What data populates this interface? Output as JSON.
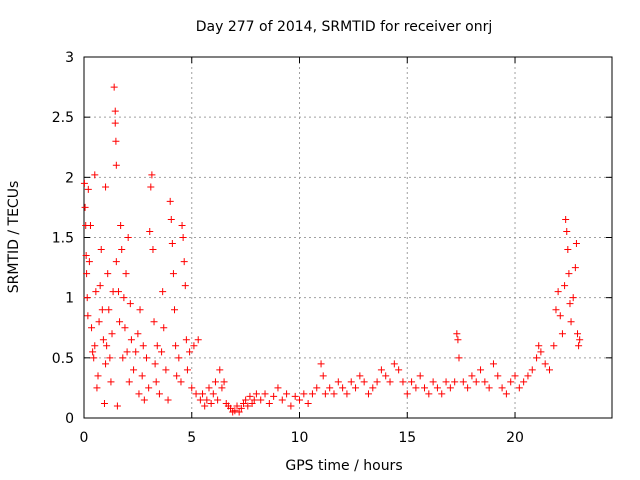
{
  "chart_data": {
    "type": "scatter",
    "title": "Day 277 of 2014, SRMTID for receiver onrj",
    "xlabel": "GPS time / hours",
    "ylabel": "SRMTID / TECUs",
    "xlim": [
      0,
      24.5
    ],
    "ylim": [
      0,
      3
    ],
    "xticks": [
      0,
      5,
      10,
      15,
      20
    ],
    "xtick_labels": [
      "0",
      "5",
      "10",
      "15",
      "20"
    ],
    "yticks": [
      0,
      0.5,
      1,
      1.5,
      2,
      2.5,
      3
    ],
    "ytick_labels": [
      "0",
      "0.5",
      "1",
      "1.5",
      "2",
      "2.5",
      "3"
    ],
    "grid": true,
    "marker": "+",
    "color": "#ff0000",
    "series": [
      {
        "name": "SRMTID",
        "points": [
          [
            0.02,
            1.95
          ],
          [
            0.05,
            1.75
          ],
          [
            0.08,
            1.6
          ],
          [
            0.1,
            1.35
          ],
          [
            0.12,
            1.2
          ],
          [
            0.15,
            1.0
          ],
          [
            0.18,
            0.85
          ],
          [
            0.2,
            1.9
          ],
          [
            0.25,
            1.3
          ],
          [
            0.3,
            1.6
          ],
          [
            0.35,
            0.75
          ],
          [
            0.4,
            0.55
          ],
          [
            0.45,
            0.5
          ],
          [
            0.5,
            2.02
          ],
          [
            0.5,
            0.6
          ],
          [
            0.55,
            1.05
          ],
          [
            0.6,
            0.25
          ],
          [
            0.65,
            0.35
          ],
          [
            0.7,
            0.8
          ],
          [
            0.75,
            1.1
          ],
          [
            0.8,
            1.4
          ],
          [
            0.85,
            0.9
          ],
          [
            0.9,
            0.65
          ],
          [
            0.95,
            0.12
          ],
          [
            1.0,
            1.92
          ],
          [
            1.0,
            0.45
          ],
          [
            1.05,
            0.6
          ],
          [
            1.1,
            1.2
          ],
          [
            1.15,
            0.9
          ],
          [
            1.2,
            0.5
          ],
          [
            1.25,
            0.3
          ],
          [
            1.3,
            0.7
          ],
          [
            1.35,
            1.05
          ],
          [
            1.4,
            2.75
          ],
          [
            1.45,
            2.55
          ],
          [
            1.45,
            2.45
          ],
          [
            1.48,
            2.3
          ],
          [
            1.5,
            2.1
          ],
          [
            1.5,
            1.3
          ],
          [
            1.55,
            0.1
          ],
          [
            1.6,
            1.05
          ],
          [
            1.65,
            0.8
          ],
          [
            1.7,
            1.6
          ],
          [
            1.75,
            1.4
          ],
          [
            1.8,
            0.5
          ],
          [
            1.85,
            1.0
          ],
          [
            1.9,
            0.75
          ],
          [
            1.95,
            1.2
          ],
          [
            2.0,
            0.55
          ],
          [
            2.05,
            1.5
          ],
          [
            2.1,
            0.3
          ],
          [
            2.15,
            0.95
          ],
          [
            2.2,
            0.65
          ],
          [
            2.3,
            0.4
          ],
          [
            2.4,
            0.55
          ],
          [
            2.5,
            0.7
          ],
          [
            2.55,
            0.2
          ],
          [
            2.6,
            0.9
          ],
          [
            2.7,
            0.35
          ],
          [
            2.75,
            0.6
          ],
          [
            2.8,
            0.15
          ],
          [
            2.9,
            0.5
          ],
          [
            3.0,
            0.25
          ],
          [
            3.05,
            1.55
          ],
          [
            3.1,
            1.92
          ],
          [
            3.15,
            2.02
          ],
          [
            3.2,
            1.4
          ],
          [
            3.25,
            0.8
          ],
          [
            3.3,
            0.45
          ],
          [
            3.35,
            0.3
          ],
          [
            3.4,
            0.6
          ],
          [
            3.5,
            0.2
          ],
          [
            3.6,
            0.55
          ],
          [
            3.65,
            1.05
          ],
          [
            3.7,
            0.75
          ],
          [
            3.8,
            0.4
          ],
          [
            3.9,
            0.15
          ],
          [
            4.0,
            1.8
          ],
          [
            4.05,
            1.65
          ],
          [
            4.1,
            1.45
          ],
          [
            4.15,
            1.2
          ],
          [
            4.2,
            0.9
          ],
          [
            4.25,
            0.6
          ],
          [
            4.3,
            0.35
          ],
          [
            4.4,
            0.5
          ],
          [
            4.5,
            0.3
          ],
          [
            4.55,
            1.6
          ],
          [
            4.6,
            1.5
          ],
          [
            4.65,
            1.3
          ],
          [
            4.7,
            1.1
          ],
          [
            4.75,
            0.65
          ],
          [
            4.8,
            0.4
          ],
          [
            4.9,
            0.55
          ],
          [
            5.0,
            0.25
          ],
          [
            5.1,
            0.6
          ],
          [
            5.2,
            0.2
          ],
          [
            5.3,
            0.65
          ],
          [
            5.4,
            0.15
          ],
          [
            5.5,
            0.2
          ],
          [
            5.6,
            0.1
          ],
          [
            5.7,
            0.15
          ],
          [
            5.8,
            0.25
          ],
          [
            5.9,
            0.12
          ],
          [
            6.0,
            0.2
          ],
          [
            6.1,
            0.3
          ],
          [
            6.2,
            0.15
          ],
          [
            6.3,
            0.4
          ],
          [
            6.4,
            0.25
          ],
          [
            6.5,
            0.3
          ],
          [
            6.6,
            0.12
          ],
          [
            6.7,
            0.1
          ],
          [
            6.8,
            0.08
          ],
          [
            6.9,
            0.05
          ],
          [
            7.0,
            0.06
          ],
          [
            7.1,
            0.1
          ],
          [
            7.2,
            0.05
          ],
          [
            7.3,
            0.08
          ],
          [
            7.4,
            0.12
          ],
          [
            7.5,
            0.15
          ],
          [
            7.6,
            0.1
          ],
          [
            7.7,
            0.18
          ],
          [
            7.8,
            0.12
          ],
          [
            7.9,
            0.15
          ],
          [
            8.0,
            0.2
          ],
          [
            8.2,
            0.15
          ],
          [
            8.4,
            0.2
          ],
          [
            8.6,
            0.12
          ],
          [
            8.8,
            0.18
          ],
          [
            9.0,
            0.25
          ],
          [
            9.2,
            0.15
          ],
          [
            9.4,
            0.2
          ],
          [
            9.6,
            0.1
          ],
          [
            9.8,
            0.18
          ],
          [
            10.0,
            0.15
          ],
          [
            10.2,
            0.2
          ],
          [
            10.4,
            0.12
          ],
          [
            10.6,
            0.2
          ],
          [
            10.8,
            0.25
          ],
          [
            11.0,
            0.45
          ],
          [
            11.1,
            0.35
          ],
          [
            11.2,
            0.2
          ],
          [
            11.4,
            0.25
          ],
          [
            11.6,
            0.2
          ],
          [
            11.8,
            0.3
          ],
          [
            12.0,
            0.25
          ],
          [
            12.2,
            0.2
          ],
          [
            12.4,
            0.3
          ],
          [
            12.6,
            0.25
          ],
          [
            12.8,
            0.35
          ],
          [
            13.0,
            0.3
          ],
          [
            13.2,
            0.2
          ],
          [
            13.4,
            0.25
          ],
          [
            13.6,
            0.3
          ],
          [
            13.8,
            0.4
          ],
          [
            14.0,
            0.35
          ],
          [
            14.2,
            0.3
          ],
          [
            14.4,
            0.45
          ],
          [
            14.6,
            0.4
          ],
          [
            14.8,
            0.3
          ],
          [
            15.0,
            0.2
          ],
          [
            15.2,
            0.3
          ],
          [
            15.4,
            0.25
          ],
          [
            15.6,
            0.35
          ],
          [
            15.8,
            0.25
          ],
          [
            16.0,
            0.2
          ],
          [
            16.2,
            0.3
          ],
          [
            16.4,
            0.25
          ],
          [
            16.6,
            0.2
          ],
          [
            16.8,
            0.3
          ],
          [
            17.0,
            0.25
          ],
          [
            17.2,
            0.3
          ],
          [
            17.3,
            0.7
          ],
          [
            17.35,
            0.65
          ],
          [
            17.4,
            0.5
          ],
          [
            17.6,
            0.3
          ],
          [
            17.8,
            0.25
          ],
          [
            18.0,
            0.35
          ],
          [
            18.2,
            0.3
          ],
          [
            18.4,
            0.4
          ],
          [
            18.6,
            0.3
          ],
          [
            18.8,
            0.25
          ],
          [
            19.0,
            0.45
          ],
          [
            19.2,
            0.35
          ],
          [
            19.4,
            0.25
          ],
          [
            19.6,
            0.2
          ],
          [
            19.8,
            0.3
          ],
          [
            20.0,
            0.35
          ],
          [
            20.2,
            0.25
          ],
          [
            20.4,
            0.3
          ],
          [
            20.6,
            0.35
          ],
          [
            20.8,
            0.4
          ],
          [
            21.0,
            0.5
          ],
          [
            21.1,
            0.6
          ],
          [
            21.2,
            0.55
          ],
          [
            21.4,
            0.45
          ],
          [
            21.6,
            0.4
          ],
          [
            21.8,
            0.6
          ],
          [
            21.9,
            0.9
          ],
          [
            22.0,
            1.05
          ],
          [
            22.1,
            0.85
          ],
          [
            22.2,
            0.7
          ],
          [
            22.3,
            1.1
          ],
          [
            22.35,
            1.65
          ],
          [
            22.4,
            1.55
          ],
          [
            22.45,
            1.4
          ],
          [
            22.5,
            1.2
          ],
          [
            22.55,
            0.95
          ],
          [
            22.6,
            0.8
          ],
          [
            22.7,
            1.0
          ],
          [
            22.8,
            1.25
          ],
          [
            22.85,
            1.45
          ],
          [
            22.9,
            0.7
          ],
          [
            22.95,
            0.6
          ],
          [
            23.0,
            0.65
          ]
        ]
      }
    ]
  }
}
